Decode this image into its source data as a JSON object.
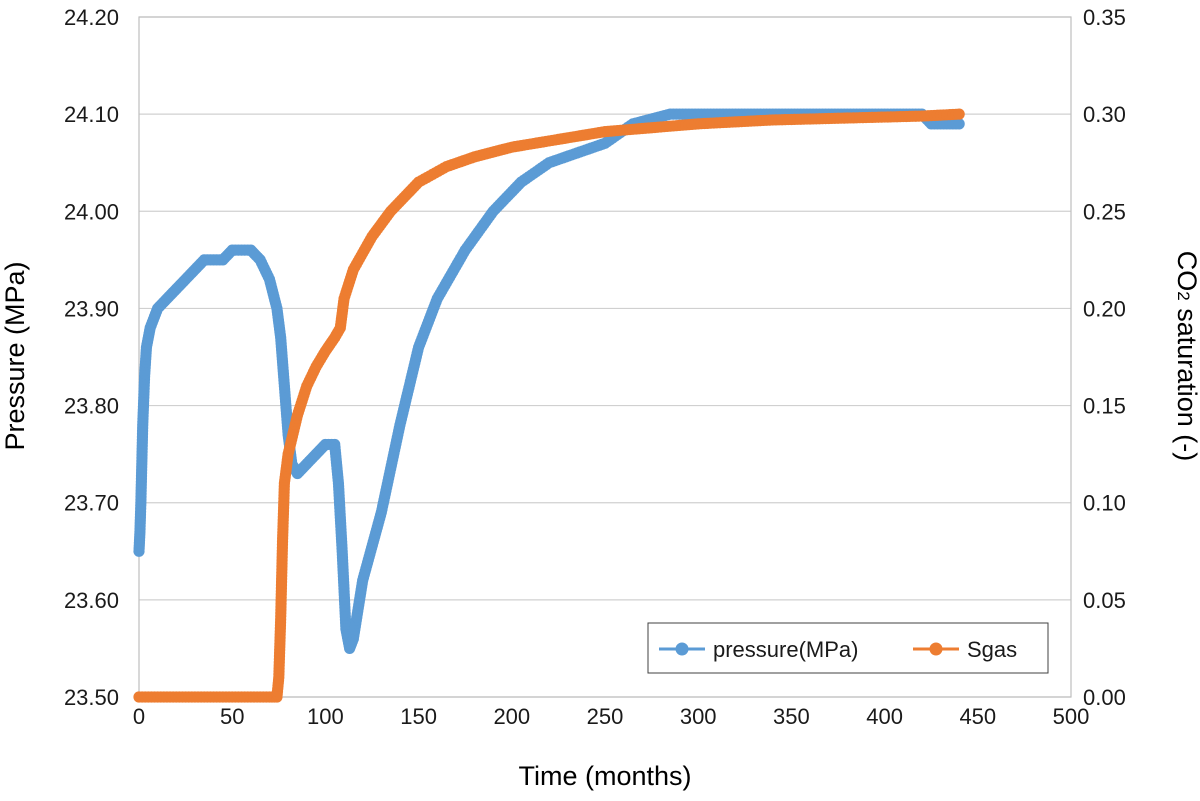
{
  "chart_data": {
    "type": "scatter",
    "xlabel": "Time (months)",
    "ylabel_left": "Pressure (MPa)",
    "ylabel_right": {
      "main": "CO",
      "sub": "2",
      "rest": " saturation (-)"
    },
    "xlim": [
      0,
      500
    ],
    "ylim_left": [
      23.5,
      24.2
    ],
    "ylim_right": [
      0,
      0.35
    ],
    "x_ticks": [
      "0",
      "50",
      "100",
      "150",
      "200",
      "250",
      "300",
      "350",
      "400",
      "450",
      "500"
    ],
    "y_left_ticks": [
      "23.50",
      "23.60",
      "23.70",
      "23.80",
      "23.90",
      "24.00",
      "24.10",
      "24.20"
    ],
    "y_right_ticks": [
      "0.00",
      "0.05",
      "0.10",
      "0.15",
      "0.20",
      "0.25",
      "0.30",
      "0.35"
    ],
    "grid": "horizontal",
    "legend_position": "bottom-right",
    "series": [
      {
        "name": "pressure(MPa)",
        "axis": "left",
        "color": "#5b9bd5",
        "points": [
          [
            0,
            23.65
          ],
          [
            0.5,
            23.67
          ],
          [
            1,
            23.7
          ],
          [
            1.5,
            23.74
          ],
          [
            2,
            23.78
          ],
          [
            3,
            23.83
          ],
          [
            4,
            23.86
          ],
          [
            6,
            23.88
          ],
          [
            10,
            23.9
          ],
          [
            15,
            23.91
          ],
          [
            20,
            23.92
          ],
          [
            25,
            23.93
          ],
          [
            30,
            23.94
          ],
          [
            35,
            23.95
          ],
          [
            45,
            23.95
          ],
          [
            50,
            23.96
          ],
          [
            60,
            23.96
          ],
          [
            65,
            23.95
          ],
          [
            70,
            23.93
          ],
          [
            74,
            23.9
          ],
          [
            76,
            23.87
          ],
          [
            78,
            23.82
          ],
          [
            80,
            23.77
          ],
          [
            82,
            23.74
          ],
          [
            85,
            23.73
          ],
          [
            90,
            23.74
          ],
          [
            95,
            23.75
          ],
          [
            100,
            23.76
          ],
          [
            105,
            23.76
          ],
          [
            107,
            23.72
          ],
          [
            109,
            23.65
          ],
          [
            111,
            23.57
          ],
          [
            113,
            23.55
          ],
          [
            115,
            23.56
          ],
          [
            120,
            23.62
          ],
          [
            130,
            23.69
          ],
          [
            140,
            23.78
          ],
          [
            150,
            23.86
          ],
          [
            160,
            23.91
          ],
          [
            175,
            23.96
          ],
          [
            190,
            24.0
          ],
          [
            205,
            24.03
          ],
          [
            220,
            24.05
          ],
          [
            235,
            24.06
          ],
          [
            250,
            24.07
          ],
          [
            265,
            24.09
          ],
          [
            285,
            24.1
          ],
          [
            320,
            24.1
          ],
          [
            360,
            24.1
          ],
          [
            400,
            24.1
          ],
          [
            420,
            24.1
          ],
          [
            425,
            24.09
          ],
          [
            440,
            24.09
          ]
        ]
      },
      {
        "name": "Sgas",
        "axis": "right",
        "color": "#ed7d31",
        "points": [
          [
            0,
            0.0
          ],
          [
            20,
            0.0
          ],
          [
            40,
            0.0
          ],
          [
            60,
            0.0
          ],
          [
            70,
            0.0
          ],
          [
            74,
            0.0
          ],
          [
            75,
            0.01
          ],
          [
            76,
            0.04
          ],
          [
            77,
            0.08
          ],
          [
            78,
            0.11
          ],
          [
            80,
            0.125
          ],
          [
            85,
            0.145
          ],
          [
            90,
            0.16
          ],
          [
            95,
            0.17
          ],
          [
            100,
            0.178
          ],
          [
            105,
            0.185
          ],
          [
            108,
            0.19
          ],
          [
            110,
            0.205
          ],
          [
            115,
            0.22
          ],
          [
            125,
            0.237
          ],
          [
            135,
            0.25
          ],
          [
            150,
            0.265
          ],
          [
            165,
            0.273
          ],
          [
            180,
            0.278
          ],
          [
            200,
            0.283
          ],
          [
            225,
            0.287
          ],
          [
            250,
            0.291
          ],
          [
            275,
            0.293
          ],
          [
            300,
            0.295
          ],
          [
            340,
            0.297
          ],
          [
            380,
            0.298
          ],
          [
            420,
            0.299
          ],
          [
            440,
            0.3
          ]
        ]
      }
    ]
  }
}
